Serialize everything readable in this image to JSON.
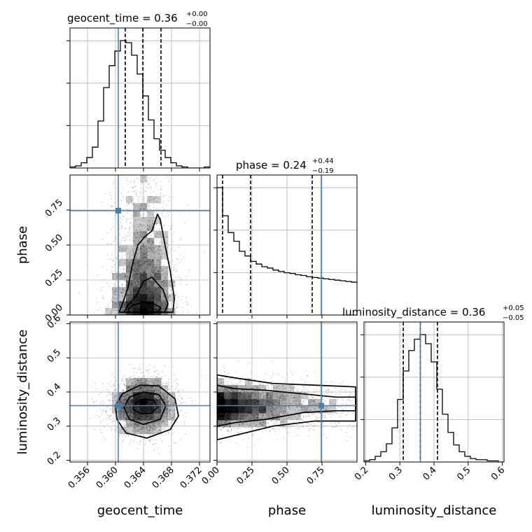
{
  "chart_data": {
    "type": "corner",
    "parameters": [
      "geocent_time",
      "phase",
      "luminosity_distance"
    ],
    "truths": {
      "geocent_time": 0.3604,
      "phase": 0.745,
      "luminosity_distance": 0.36
    },
    "truth_color": "#4682b4",
    "grid": true,
    "titles": [
      {
        "param": "geocent_time",
        "label": "geocent_time",
        "value": "0.36",
        "plus": "+0.00",
        "minus": "−0.00"
      },
      {
        "param": "phase",
        "label": "phase",
        "value": "0.24",
        "plus": "+0.44",
        "minus": "−0.19"
      },
      {
        "param": "luminosity_distance",
        "label": "luminosity_distance",
        "value": "0.36",
        "plus": "+0.05",
        "minus": "−0.05"
      }
    ],
    "axes": {
      "geocent_time": {
        "range": [
          0.3535,
          0.3735
        ],
        "ticks": [
          0.356,
          0.36,
          0.364,
          0.368,
          0.372
        ],
        "tick_labels": [
          "0.356",
          "0.360",
          "0.364",
          "0.368",
          "0.372"
        ]
      },
      "phase": {
        "range": [
          0.0,
          1.0
        ],
        "ticks": [
          0.0,
          0.25,
          0.5,
          0.75
        ],
        "tick_labels": [
          "0.00",
          "0.25",
          "0.50",
          "0.75"
        ]
      },
      "luminosity_distance": {
        "range": [
          0.195,
          0.605
        ],
        "ticks": [
          0.2,
          0.3,
          0.4,
          0.5,
          0.6
        ],
        "tick_labels": [
          "0.2",
          "0.3",
          "0.4",
          "0.5",
          "0.6"
        ]
      }
    },
    "histograms": {
      "geocent_time": {
        "bin_start": 0.3535,
        "bin_width": 0.0008,
        "counts": [
          1,
          2,
          5,
          10,
          20,
          45,
          77,
          98,
          112,
          122,
          120,
          108,
          90,
          69,
          46,
          28,
          17,
          10,
          5,
          2,
          1,
          0,
          0,
          0,
          1
        ],
        "quantiles": [
          0.3614,
          0.3639,
          0.3665
        ]
      },
      "phase": {
        "bin_start": 0.0,
        "bin_width": 0.04,
        "counts": [
          190,
          148,
          123,
          110,
          95,
          88,
          80,
          76,
          72,
          70,
          67,
          65,
          63,
          62,
          60,
          59,
          57,
          56,
          55,
          54,
          53,
          52,
          51,
          50,
          49
        ],
        "quantiles": [
          0.04,
          0.24,
          0.68
        ]
      },
      "luminosity_distance": {
        "bin_start": 0.195,
        "bin_width": 0.0164,
        "counts": [
          1,
          2,
          5,
          9,
          16,
          30,
          55,
          80,
          98,
          108,
          112,
          104,
          88,
          64,
          42,
          26,
          15,
          9,
          5,
          3,
          2,
          2,
          1,
          1,
          0
        ],
        "quantiles": [
          0.31,
          0.36,
          0.41
        ]
      }
    },
    "scatter_2d": [
      {
        "x_param": "geocent_time",
        "y_param": "phase",
        "x_center": 0.364,
        "x_sigma": 0.0022,
        "y_distribution": "decaying",
        "y_scale": 0.35,
        "n_points": 2600,
        "contours": [
          {
            "level": 0.39,
            "points": [
              [
                0.362,
                0.02
              ],
              [
                0.366,
                0.02
              ],
              [
                0.3665,
                0.05
              ],
              [
                0.3655,
                0.08
              ],
              [
                0.364,
                0.09
              ],
              [
                0.3625,
                0.07
              ],
              [
                0.3618,
                0.04
              ]
            ]
          },
          {
            "level": 0.86,
            "points": [
              [
                0.3612,
                0.02
              ],
              [
                0.367,
                0.02
              ],
              [
                0.3675,
                0.08
              ],
              [
                0.3668,
                0.18
              ],
              [
                0.3652,
                0.27
              ],
              [
                0.364,
                0.24
              ],
              [
                0.363,
                0.14
              ],
              [
                0.3618,
                0.07
              ]
            ]
          },
          {
            "level": 0.99,
            "points": [
              [
                0.3605,
                0.02
              ],
              [
                0.3682,
                0.02
              ],
              [
                0.3684,
                0.12
              ],
              [
                0.3678,
                0.32
              ],
              [
                0.367,
                0.52
              ],
              [
                0.3664,
                0.68
              ],
              [
                0.366,
                0.72
              ],
              [
                0.3652,
                0.6
              ],
              [
                0.3642,
                0.56
              ],
              [
                0.3632,
                0.5
              ],
              [
                0.3624,
                0.36
              ],
              [
                0.3618,
                0.2
              ],
              [
                0.361,
                0.08
              ]
            ]
          }
        ]
      },
      {
        "x_param": "geocent_time",
        "y_param": "luminosity_distance",
        "x_center": 0.364,
        "x_sigma": 0.0023,
        "y_center": 0.36,
        "y_sigma": 0.04,
        "n_points": 2600,
        "contours": [
          {
            "level": 0.39,
            "points": [
              [
                0.3625,
                0.35
              ],
              [
                0.363,
                0.37
              ],
              [
                0.364,
                0.38
              ],
              [
                0.3655,
                0.375
              ],
              [
                0.366,
                0.355
              ],
              [
                0.365,
                0.337
              ],
              [
                0.3635,
                0.337
              ]
            ]
          },
          {
            "level": 0.86,
            "points": [
              [
                0.3612,
                0.355
              ],
              [
                0.362,
                0.385
              ],
              [
                0.364,
                0.4
              ],
              [
                0.3662,
                0.392
              ],
              [
                0.3672,
                0.36
              ],
              [
                0.3664,
                0.32
              ],
              [
                0.364,
                0.305
              ],
              [
                0.362,
                0.32
              ]
            ]
          },
          {
            "level": 0.99,
            "points": [
              [
                0.36,
                0.36
              ],
              [
                0.361,
                0.395
              ],
              [
                0.3635,
                0.42
              ],
              [
                0.3662,
                0.418
              ],
              [
                0.3685,
                0.38
              ],
              [
                0.369,
                0.33
              ],
              [
                0.3678,
                0.29
              ],
              [
                0.3645,
                0.265
              ],
              [
                0.3615,
                0.28
              ],
              [
                0.3602,
                0.32
              ]
            ]
          }
        ]
      },
      {
        "x_param": "phase",
        "y_param": "luminosity_distance",
        "x_distribution": "decaying",
        "x_scale": 0.35,
        "y_center": 0.36,
        "y_sigma": 0.035,
        "n_points": 2600,
        "contours": [
          {
            "level": 0.39,
            "points": [
              [
                0.0,
                0.33
              ],
              [
                0.05,
                0.33
              ],
              [
                0.06,
                0.35
              ],
              [
                0.05,
                0.38
              ],
              [
                0.0,
                0.39
              ]
            ]
          },
          {
            "level": 0.86,
            "points": [
              [
                0.0,
                0.3
              ],
              [
                0.12,
                0.31
              ],
              [
                0.35,
                0.32
              ],
              [
                0.62,
                0.34
              ],
              [
                0.85,
                0.345
              ],
              [
                0.99,
                0.345
              ],
              [
                0.99,
                0.385
              ],
              [
                0.85,
                0.385
              ],
              [
                0.6,
                0.395
              ],
              [
                0.35,
                0.405
              ],
              [
                0.12,
                0.41
              ],
              [
                0.0,
                0.42
              ]
            ]
          },
          {
            "level": 0.99,
            "points": [
              [
                0.0,
                0.26
              ],
              [
                0.15,
                0.275
              ],
              [
                0.4,
                0.3
              ],
              [
                0.7,
                0.315
              ],
              [
                0.99,
                0.315
              ],
              [
                0.99,
                0.415
              ],
              [
                0.7,
                0.42
              ],
              [
                0.4,
                0.425
              ],
              [
                0.15,
                0.44
              ],
              [
                0.0,
                0.45
              ]
            ]
          }
        ]
      }
    ]
  }
}
